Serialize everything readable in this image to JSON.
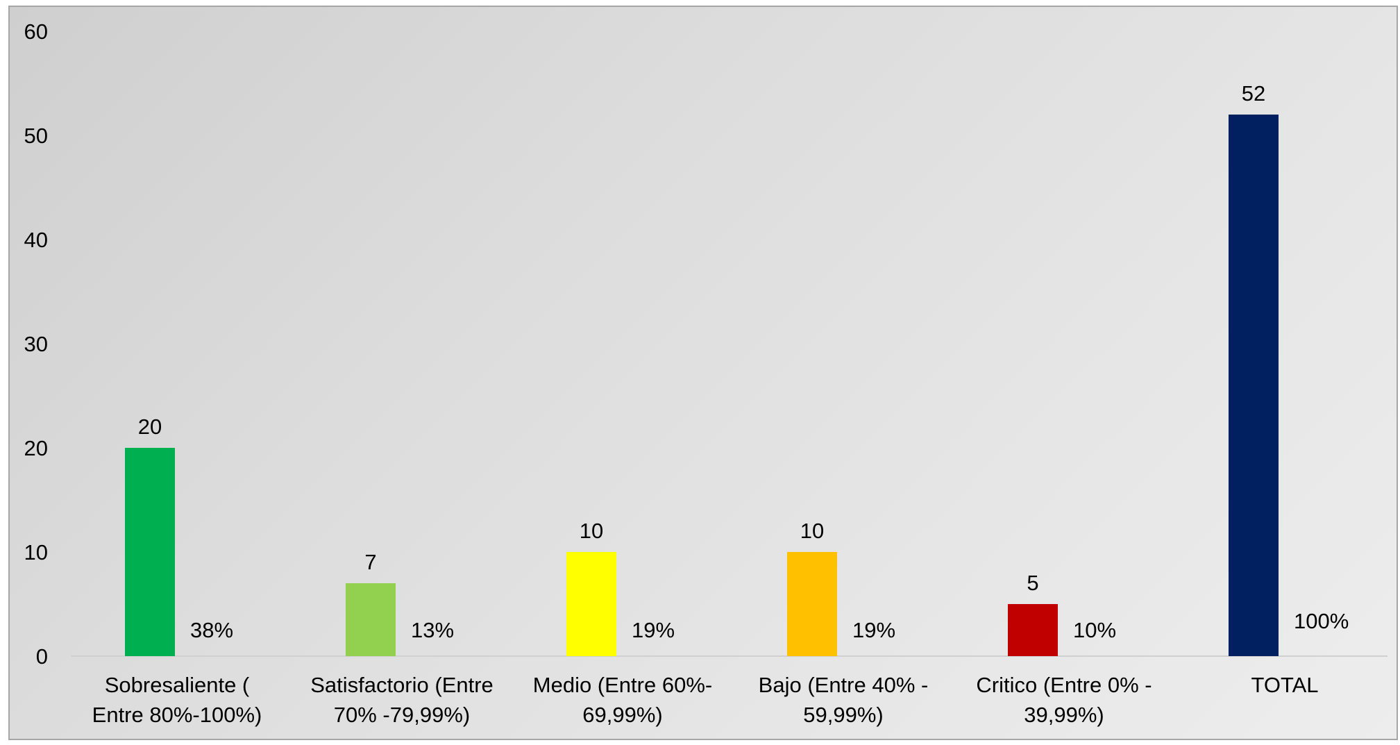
{
  "chart_data": {
    "type": "bar",
    "title": "",
    "xlabel": "",
    "ylabel": "",
    "ylim": [
      0,
      60
    ],
    "yticks": [
      0,
      10,
      20,
      30,
      40,
      50,
      60
    ],
    "grid": false,
    "legend": "none",
    "categories": [
      [
        "Sobresaliente  (",
        "Entre 80%-100%)"
      ],
      [
        "Satisfactorio (Entre",
        "70% -79,99%)"
      ],
      [
        "Medio (Entre 60%-",
        "69,99%)"
      ],
      [
        "Bajo (Entre 40% -",
        "59,99%)"
      ],
      [
        "Critico (Entre 0% -",
        "39,99%)"
      ],
      [
        "TOTAL"
      ]
    ],
    "values": [
      20,
      7,
      10,
      10,
      5,
      52
    ],
    "percent_labels": [
      "38%",
      "13%",
      "19%",
      "19%",
      "10%",
      "100%"
    ],
    "bar_colors": [
      "#00b050",
      "#92d050",
      "#ffff00",
      "#ffc000",
      "#c00000",
      "#002060"
    ]
  }
}
